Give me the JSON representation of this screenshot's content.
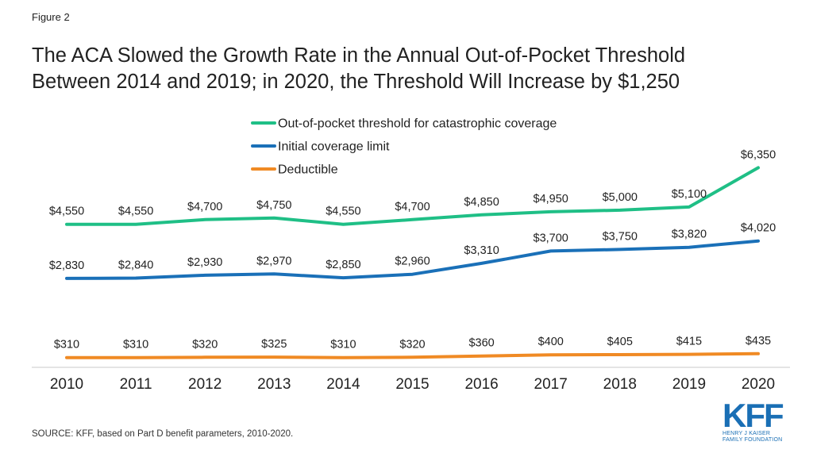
{
  "figure_label": "Figure 2",
  "title_lines": [
    "The ACA Slowed the Growth Rate in the Annual Out-of-Pocket Threshold",
    "Between 2014 and 2019; in 2020, the Threshold Will Increase by $1,250"
  ],
  "source": "SOURCE: KFF, based on Part D benefit parameters, 2010-2020.",
  "logo": {
    "main": "KFF",
    "sub_line1": "HENRY J KAISER",
    "sub_line2": "FAMILY FOUNDATION"
  },
  "chart_data": {
    "type": "line",
    "categories": [
      "2010",
      "2011",
      "2012",
      "2013",
      "2014",
      "2015",
      "2016",
      "2017",
      "2018",
      "2019",
      "2020"
    ],
    "series": [
      {
        "name": "Out-of-pocket threshold for catastrophic coverage",
        "color": "#1fbf86",
        "values": [
          4550,
          4550,
          4700,
          4750,
          4550,
          4700,
          4850,
          4950,
          5000,
          5100,
          6350
        ],
        "labels": [
          "$4,550",
          "$4,550",
          "$4,700",
          "$4,750",
          "$4,550",
          "$4,700",
          "$4,850",
          "$4,950",
          "$5,000",
          "$5,100",
          "$6,350"
        ]
      },
      {
        "name": "Initial coverage limit",
        "color": "#1a70b8",
        "values": [
          2830,
          2840,
          2930,
          2970,
          2850,
          2960,
          3310,
          3700,
          3750,
          3820,
          4020
        ],
        "labels": [
          "$2,830",
          "$2,840",
          "$2,930",
          "$2,970",
          "$2,850",
          "$2,960",
          "$3,310",
          "$3,700",
          "$3,750",
          "$3,820",
          "$4,020"
        ]
      },
      {
        "name": "Deductible",
        "color": "#f08a24",
        "values": [
          310,
          310,
          320,
          325,
          310,
          320,
          360,
          400,
          405,
          415,
          435
        ],
        "labels": [
          "$310",
          "$310",
          "$320",
          "$325",
          "$310",
          "$320",
          "$360",
          "$400",
          "$405",
          "$415",
          "$435"
        ]
      }
    ],
    "xlabel": "",
    "ylabel": "",
    "ylim": [
      0,
      6600
    ],
    "grid": false,
    "legend": "top-center"
  }
}
